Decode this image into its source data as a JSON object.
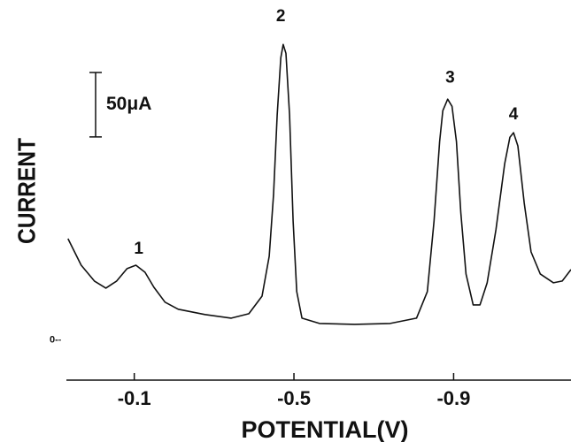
{
  "chart_data": {
    "type": "line",
    "x_label": "POTENTIAL(V)",
    "y_label": "CURRENT",
    "x": [
      0.066,
      0.033,
      0.0,
      -0.029,
      -0.056,
      -0.082,
      -0.104,
      -0.127,
      -0.149,
      -0.177,
      -0.21,
      -0.277,
      -0.343,
      -0.387,
      -0.42,
      -0.438,
      -0.449,
      -0.458,
      -0.467,
      -0.473,
      -0.48,
      -0.489,
      -0.498,
      -0.507,
      -0.52,
      -0.564,
      -0.652,
      -0.741,
      -0.807,
      -0.834,
      -0.851,
      -0.865,
      -0.873,
      -0.885,
      -0.896,
      -0.907,
      -0.918,
      -0.931,
      -0.949,
      -0.966,
      -0.984,
      -1.006,
      -1.028,
      -1.041,
      -1.05,
      -1.061,
      -1.077,
      -1.094,
      -1.117,
      -1.15,
      -1.172,
      -1.194
    ],
    "series": [
      {
        "color": "#111111",
        "values": [
          78.8,
          58.2,
          45.9,
          40.4,
          45.9,
          55.5,
          58.2,
          52.7,
          41.1,
          29.5,
          24.0,
          19.9,
          17.1,
          20.5,
          34.2,
          65.1,
          113.0,
          174.7,
          219.2,
          229.5,
          222.6,
          174.7,
          92.5,
          37.7,
          17.1,
          13.0,
          12.3,
          13.0,
          17.1,
          37.7,
          92.5,
          154.1,
          178.1,
          187.0,
          181.5,
          154.1,
          99.3,
          51.4,
          27.4,
          27.4,
          44.5,
          85.6,
          137.0,
          157.5,
          161.0,
          150.7,
          106.2,
          68.5,
          51.4,
          44.5,
          45.9,
          54.8
        ]
      }
    ],
    "xlim": [
      0.07,
      -1.194
    ],
    "ylim": [
      -31,
      264
    ],
    "xticks": [
      -0.1,
      -0.5,
      -0.9
    ],
    "yticks": [
      {
        "value": 0,
        "label": "0-"
      }
    ],
    "scale_bar": {
      "value": 50,
      "label": "50μA"
    },
    "annotations": [
      {
        "text": "1",
        "x": -0.111,
        "y": 70.5
      },
      {
        "text": "2",
        "x": -0.467,
        "y": 251
      },
      {
        "text": "3",
        "x": -0.891,
        "y": 203.4
      },
      {
        "text": "4",
        "x": -1.05,
        "y": 174.7
      }
    ]
  }
}
